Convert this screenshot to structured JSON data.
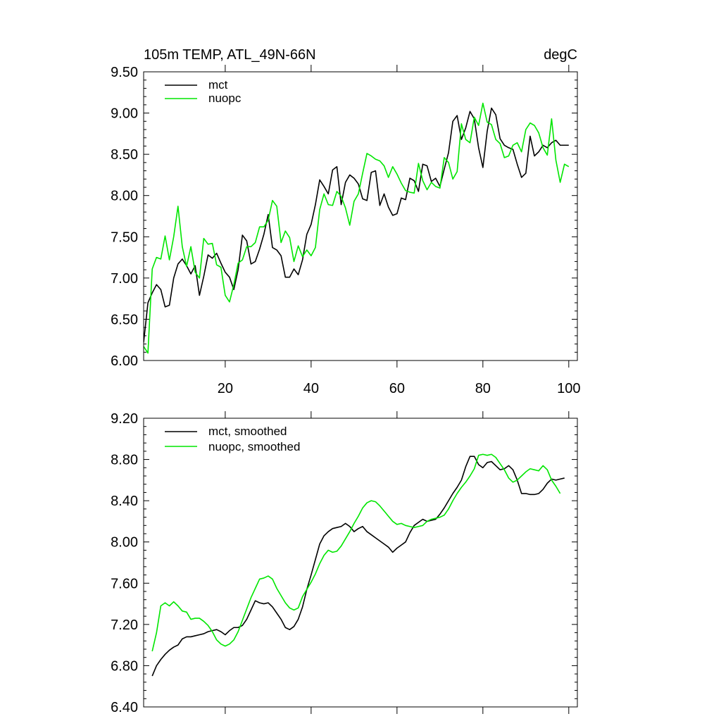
{
  "chart_data": [
    {
      "type": "line",
      "title": "105m TEMP, ATL_49N-66N",
      "units_label": "degC",
      "xlim": [
        1,
        102
      ],
      "ylim": [
        6.0,
        9.5
      ],
      "x_ticks": [
        20,
        40,
        60,
        80,
        100
      ],
      "x_tick_labels": [
        "20",
        "40",
        "60",
        "80",
        "100"
      ],
      "y_ticks": [
        6.0,
        6.5,
        7.0,
        7.5,
        8.0,
        8.5,
        9.0,
        9.5
      ],
      "y_tick_labels": [
        "6.00",
        "6.50",
        "7.00",
        "7.50",
        "8.00",
        "8.50",
        "9.00",
        "9.50"
      ],
      "legend_position": "top-left",
      "series": [
        {
          "name": "mct",
          "color": "#000000",
          "x_start": 1,
          "values": [
            6.22,
            6.7,
            6.82,
            6.92,
            6.86,
            6.65,
            6.67,
            7.0,
            7.17,
            7.23,
            7.15,
            7.05,
            7.15,
            6.79,
            7.02,
            7.28,
            7.24,
            7.3,
            7.18,
            7.07,
            7.01,
            6.86,
            7.1,
            7.52,
            7.45,
            7.17,
            7.2,
            7.35,
            7.53,
            7.77,
            7.37,
            7.34,
            7.27,
            7.01,
            7.01,
            7.11,
            7.04,
            7.22,
            7.53,
            7.65,
            7.89,
            8.19,
            8.11,
            8.02,
            8.31,
            8.35,
            7.89,
            8.16,
            8.25,
            8.21,
            8.14,
            7.96,
            7.94,
            8.28,
            8.3,
            7.88,
            8.02,
            7.86,
            7.76,
            7.78,
            7.97,
            7.95,
            8.21,
            8.18,
            8.05,
            8.38,
            8.36,
            8.17,
            8.21,
            8.11,
            8.32,
            8.52,
            8.9,
            8.97,
            8.68,
            8.82,
            9.02,
            8.93,
            8.58,
            8.34,
            8.78,
            9.06,
            8.98,
            8.69,
            8.61,
            8.58,
            8.56,
            8.38,
            8.22,
            8.27,
            8.72,
            8.48,
            8.53,
            8.61,
            8.58,
            8.64,
            8.67,
            8.61,
            8.61,
            8.61
          ]
        },
        {
          "name": "nuopc",
          "color": "#00e600",
          "x_start": 1,
          "values": [
            6.17,
            6.09,
            7.11,
            7.25,
            7.23,
            7.51,
            7.22,
            7.5,
            7.87,
            7.38,
            7.14,
            7.38,
            7.07,
            7.0,
            7.48,
            7.41,
            7.42,
            7.16,
            7.13,
            6.79,
            6.71,
            6.92,
            7.18,
            7.22,
            7.38,
            7.38,
            7.43,
            7.62,
            7.62,
            7.7,
            7.94,
            7.87,
            7.43,
            7.57,
            7.49,
            7.2,
            7.39,
            7.26,
            7.34,
            7.27,
            7.37,
            7.83,
            8.02,
            7.89,
            7.88,
            8.05,
            7.99,
            7.85,
            7.64,
            7.93,
            8.02,
            8.27,
            8.51,
            8.48,
            8.44,
            8.42,
            8.36,
            8.22,
            8.35,
            8.26,
            8.15,
            8.06,
            8.04,
            8.03,
            8.39,
            8.18,
            8.07,
            8.16,
            8.11,
            8.09,
            8.46,
            8.4,
            8.2,
            8.29,
            8.87,
            8.68,
            8.64,
            8.95,
            8.85,
            9.12,
            8.89,
            8.86,
            8.68,
            8.63,
            8.46,
            8.48,
            8.61,
            8.64,
            8.53,
            8.8,
            8.88,
            8.85,
            8.76,
            8.58,
            8.49,
            8.93,
            8.43,
            8.16,
            8.38,
            8.35
          ]
        }
      ]
    },
    {
      "type": "line",
      "title": "",
      "xlim": [
        1,
        102
      ],
      "ylim": [
        6.4,
        9.2
      ],
      "y_ticks": [
        6.4,
        6.8,
        7.2,
        7.6,
        8.0,
        8.4,
        8.8,
        9.2
      ],
      "y_tick_labels": [
        "6.40",
        "6.80",
        "7.20",
        "7.60",
        "8.00",
        "8.40",
        "8.80",
        "9.20"
      ],
      "legend_position": "top-left",
      "series": [
        {
          "name": "mct, smoothed",
          "color": "#000000",
          "x_start": 3,
          "values": [
            6.7,
            6.8,
            6.86,
            6.91,
            6.95,
            6.98,
            7.0,
            7.06,
            7.08,
            7.08,
            7.09,
            7.1,
            7.11,
            7.13,
            7.14,
            7.15,
            7.13,
            7.1,
            7.14,
            7.17,
            7.17,
            7.19,
            7.25,
            7.34,
            7.43,
            7.41,
            7.4,
            7.41,
            7.37,
            7.31,
            7.25,
            7.17,
            7.15,
            7.18,
            7.25,
            7.37,
            7.54,
            7.68,
            7.83,
            7.98,
            8.06,
            8.1,
            8.13,
            8.14,
            8.15,
            8.18,
            8.15,
            8.1,
            8.13,
            8.15,
            8.1,
            8.07,
            8.04,
            8.01,
            7.98,
            7.95,
            7.9,
            7.94,
            7.97,
            8.0,
            8.09,
            8.16,
            8.19,
            8.22,
            8.2,
            8.21,
            8.22,
            8.27,
            8.33,
            8.4,
            8.47,
            8.53,
            8.6,
            8.73,
            8.83,
            8.83,
            8.75,
            8.72,
            8.77,
            8.78,
            8.74,
            8.7,
            8.71,
            8.74,
            8.7,
            8.6,
            8.47,
            8.47,
            8.46,
            8.46,
            8.47,
            8.51,
            8.57,
            8.61,
            8.6,
            8.61,
            8.62
          ]
        },
        {
          "name": "nuopc, smoothed",
          "color": "#00e600",
          "x_start": 3,
          "values": [
            6.94,
            7.12,
            7.38,
            7.41,
            7.38,
            7.42,
            7.38,
            7.33,
            7.32,
            7.25,
            7.26,
            7.26,
            7.23,
            7.19,
            7.13,
            7.05,
            7.01,
            6.99,
            7.01,
            7.05,
            7.13,
            7.24,
            7.35,
            7.46,
            7.55,
            7.64,
            7.65,
            7.67,
            7.64,
            7.55,
            7.48,
            7.41,
            7.36,
            7.34,
            7.36,
            7.47,
            7.54,
            7.61,
            7.69,
            7.79,
            7.87,
            7.92,
            7.9,
            7.91,
            7.96,
            8.03,
            8.1,
            8.18,
            8.25,
            8.33,
            8.38,
            8.4,
            8.39,
            8.35,
            8.3,
            8.25,
            8.2,
            8.17,
            8.18,
            8.16,
            8.15,
            8.14,
            8.15,
            8.16,
            8.2,
            8.22,
            8.23,
            8.24,
            8.26,
            8.32,
            8.4,
            8.47,
            8.53,
            8.58,
            8.64,
            8.71,
            8.84,
            8.85,
            8.84,
            8.85,
            8.82,
            8.76,
            8.7,
            8.62,
            8.58,
            8.6,
            8.64,
            8.68,
            8.71,
            8.7,
            8.69,
            8.74,
            8.7,
            8.6,
            8.54,
            8.47
          ]
        }
      ]
    }
  ]
}
